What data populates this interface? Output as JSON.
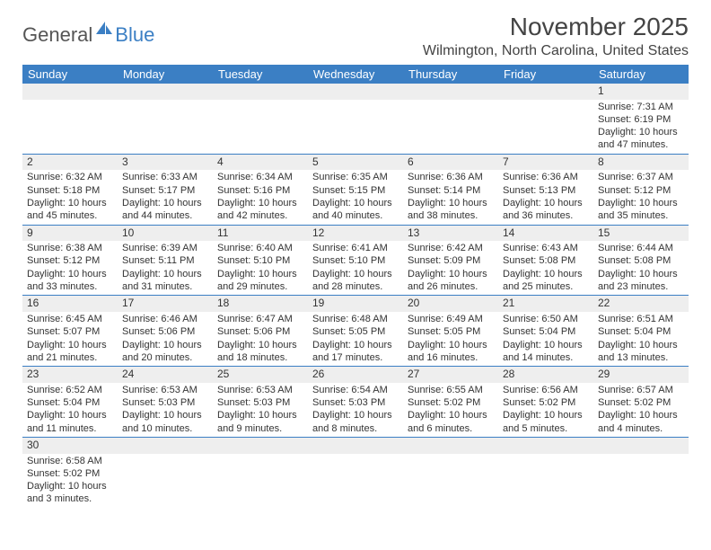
{
  "brand": {
    "part1": "General",
    "part2": "Blue"
  },
  "title": "November 2025",
  "location": "Wilmington, North Carolina, United States",
  "colors": {
    "header_bg": "#3b7fc4",
    "header_text": "#ffffff",
    "daynum_bg": "#eeeeee",
    "row_border": "#3b7fc4",
    "text": "#333333",
    "background": "#ffffff"
  },
  "weekdays": [
    "Sunday",
    "Monday",
    "Tuesday",
    "Wednesday",
    "Thursday",
    "Friday",
    "Saturday"
  ],
  "weeks": [
    [
      {
        "n": ""
      },
      {
        "n": ""
      },
      {
        "n": ""
      },
      {
        "n": ""
      },
      {
        "n": ""
      },
      {
        "n": ""
      },
      {
        "n": "1",
        "sr": "7:31 AM",
        "ss": "6:19 PM",
        "dl": "10 hours and 47 minutes."
      }
    ],
    [
      {
        "n": "2",
        "sr": "6:32 AM",
        "ss": "5:18 PM",
        "dl": "10 hours and 45 minutes."
      },
      {
        "n": "3",
        "sr": "6:33 AM",
        "ss": "5:17 PM",
        "dl": "10 hours and 44 minutes."
      },
      {
        "n": "4",
        "sr": "6:34 AM",
        "ss": "5:16 PM",
        "dl": "10 hours and 42 minutes."
      },
      {
        "n": "5",
        "sr": "6:35 AM",
        "ss": "5:15 PM",
        "dl": "10 hours and 40 minutes."
      },
      {
        "n": "6",
        "sr": "6:36 AM",
        "ss": "5:14 PM",
        "dl": "10 hours and 38 minutes."
      },
      {
        "n": "7",
        "sr": "6:36 AM",
        "ss": "5:13 PM",
        "dl": "10 hours and 36 minutes."
      },
      {
        "n": "8",
        "sr": "6:37 AM",
        "ss": "5:12 PM",
        "dl": "10 hours and 35 minutes."
      }
    ],
    [
      {
        "n": "9",
        "sr": "6:38 AM",
        "ss": "5:12 PM",
        "dl": "10 hours and 33 minutes."
      },
      {
        "n": "10",
        "sr": "6:39 AM",
        "ss": "5:11 PM",
        "dl": "10 hours and 31 minutes."
      },
      {
        "n": "11",
        "sr": "6:40 AM",
        "ss": "5:10 PM",
        "dl": "10 hours and 29 minutes."
      },
      {
        "n": "12",
        "sr": "6:41 AM",
        "ss": "5:10 PM",
        "dl": "10 hours and 28 minutes."
      },
      {
        "n": "13",
        "sr": "6:42 AM",
        "ss": "5:09 PM",
        "dl": "10 hours and 26 minutes."
      },
      {
        "n": "14",
        "sr": "6:43 AM",
        "ss": "5:08 PM",
        "dl": "10 hours and 25 minutes."
      },
      {
        "n": "15",
        "sr": "6:44 AM",
        "ss": "5:08 PM",
        "dl": "10 hours and 23 minutes."
      }
    ],
    [
      {
        "n": "16",
        "sr": "6:45 AM",
        "ss": "5:07 PM",
        "dl": "10 hours and 21 minutes."
      },
      {
        "n": "17",
        "sr": "6:46 AM",
        "ss": "5:06 PM",
        "dl": "10 hours and 20 minutes."
      },
      {
        "n": "18",
        "sr": "6:47 AM",
        "ss": "5:06 PM",
        "dl": "10 hours and 18 minutes."
      },
      {
        "n": "19",
        "sr": "6:48 AM",
        "ss": "5:05 PM",
        "dl": "10 hours and 17 minutes."
      },
      {
        "n": "20",
        "sr": "6:49 AM",
        "ss": "5:05 PM",
        "dl": "10 hours and 16 minutes."
      },
      {
        "n": "21",
        "sr": "6:50 AM",
        "ss": "5:04 PM",
        "dl": "10 hours and 14 minutes."
      },
      {
        "n": "22",
        "sr": "6:51 AM",
        "ss": "5:04 PM",
        "dl": "10 hours and 13 minutes."
      }
    ],
    [
      {
        "n": "23",
        "sr": "6:52 AM",
        "ss": "5:04 PM",
        "dl": "10 hours and 11 minutes."
      },
      {
        "n": "24",
        "sr": "6:53 AM",
        "ss": "5:03 PM",
        "dl": "10 hours and 10 minutes."
      },
      {
        "n": "25",
        "sr": "6:53 AM",
        "ss": "5:03 PM",
        "dl": "10 hours and 9 minutes."
      },
      {
        "n": "26",
        "sr": "6:54 AM",
        "ss": "5:03 PM",
        "dl": "10 hours and 8 minutes."
      },
      {
        "n": "27",
        "sr": "6:55 AM",
        "ss": "5:02 PM",
        "dl": "10 hours and 6 minutes."
      },
      {
        "n": "28",
        "sr": "6:56 AM",
        "ss": "5:02 PM",
        "dl": "10 hours and 5 minutes."
      },
      {
        "n": "29",
        "sr": "6:57 AM",
        "ss": "5:02 PM",
        "dl": "10 hours and 4 minutes."
      }
    ],
    [
      {
        "n": "30",
        "sr": "6:58 AM",
        "ss": "5:02 PM",
        "dl": "10 hours and 3 minutes."
      },
      {
        "n": ""
      },
      {
        "n": ""
      },
      {
        "n": ""
      },
      {
        "n": ""
      },
      {
        "n": ""
      },
      {
        "n": ""
      }
    ]
  ],
  "labels": {
    "sunrise": "Sunrise: ",
    "sunset": "Sunset: ",
    "daylight": "Daylight: "
  }
}
